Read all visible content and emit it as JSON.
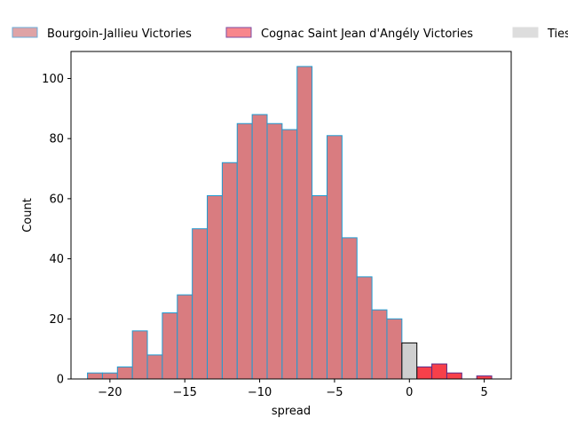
{
  "chart_data": {
    "type": "bar",
    "xlabel": "spread",
    "ylabel": "Count",
    "xlim": [
      -22.6,
      6.8
    ],
    "ylim": [
      0,
      109
    ],
    "xticks": [
      -20,
      -15,
      -10,
      -5,
      0,
      5
    ],
    "yticks": [
      0,
      20,
      40,
      60,
      80,
      100
    ],
    "legend_position": "top, above plot (single row, clipped at right)",
    "bin_width": 1,
    "series": [
      {
        "name": "Bourgoin-Jallieu Victories",
        "fill": "#d97c80",
        "edge": "#1f9bd1",
        "bins": [
          {
            "start": -21.5,
            "count": 2
          },
          {
            "start": -20.5,
            "count": 2
          },
          {
            "start": -19.5,
            "count": 4
          },
          {
            "start": -18.5,
            "count": 16
          },
          {
            "start": -17.5,
            "count": 8
          },
          {
            "start": -16.5,
            "count": 22
          },
          {
            "start": -15.5,
            "count": 28
          },
          {
            "start": -14.5,
            "count": 50
          },
          {
            "start": -13.5,
            "count": 61
          },
          {
            "start": -12.5,
            "count": 72
          },
          {
            "start": -11.5,
            "count": 85
          },
          {
            "start": -10.5,
            "count": 88
          },
          {
            "start": -9.5,
            "count": 85
          },
          {
            "start": -8.5,
            "count": 83
          },
          {
            "start": -7.5,
            "count": 104
          },
          {
            "start": -6.5,
            "count": 61
          },
          {
            "start": -5.5,
            "count": 81
          },
          {
            "start": -4.5,
            "count": 47
          },
          {
            "start": -3.5,
            "count": 34
          },
          {
            "start": -2.5,
            "count": 23
          },
          {
            "start": -1.5,
            "count": 20
          }
        ]
      },
      {
        "name": "Cognac Saint Jean d'Angély Victories",
        "fill": "#f7404a",
        "edge": "#5b2a86",
        "bins": [
          {
            "start": 0.5,
            "count": 4
          },
          {
            "start": 1.5,
            "count": 5
          },
          {
            "start": 2.5,
            "count": 2
          },
          {
            "start": 4.5,
            "count": 1
          }
        ]
      },
      {
        "name": "Ties",
        "fill": "#cfcfcf",
        "edge": "#000000",
        "bins": [
          {
            "start": -0.5,
            "count": 12
          }
        ]
      }
    ]
  },
  "legend": {
    "items": [
      {
        "label": "Bourgoin-Jallieu Victories",
        "fill": "#dea3a6",
        "edge": "#6aaed9"
      },
      {
        "label": "Cognac Saint Jean d'Angély Victories",
        "fill": "#f8868c",
        "edge": "#7d4ea3"
      },
      {
        "label": "Ties",
        "fill": "#dddddd",
        "edge": "#dddddd"
      }
    ]
  }
}
